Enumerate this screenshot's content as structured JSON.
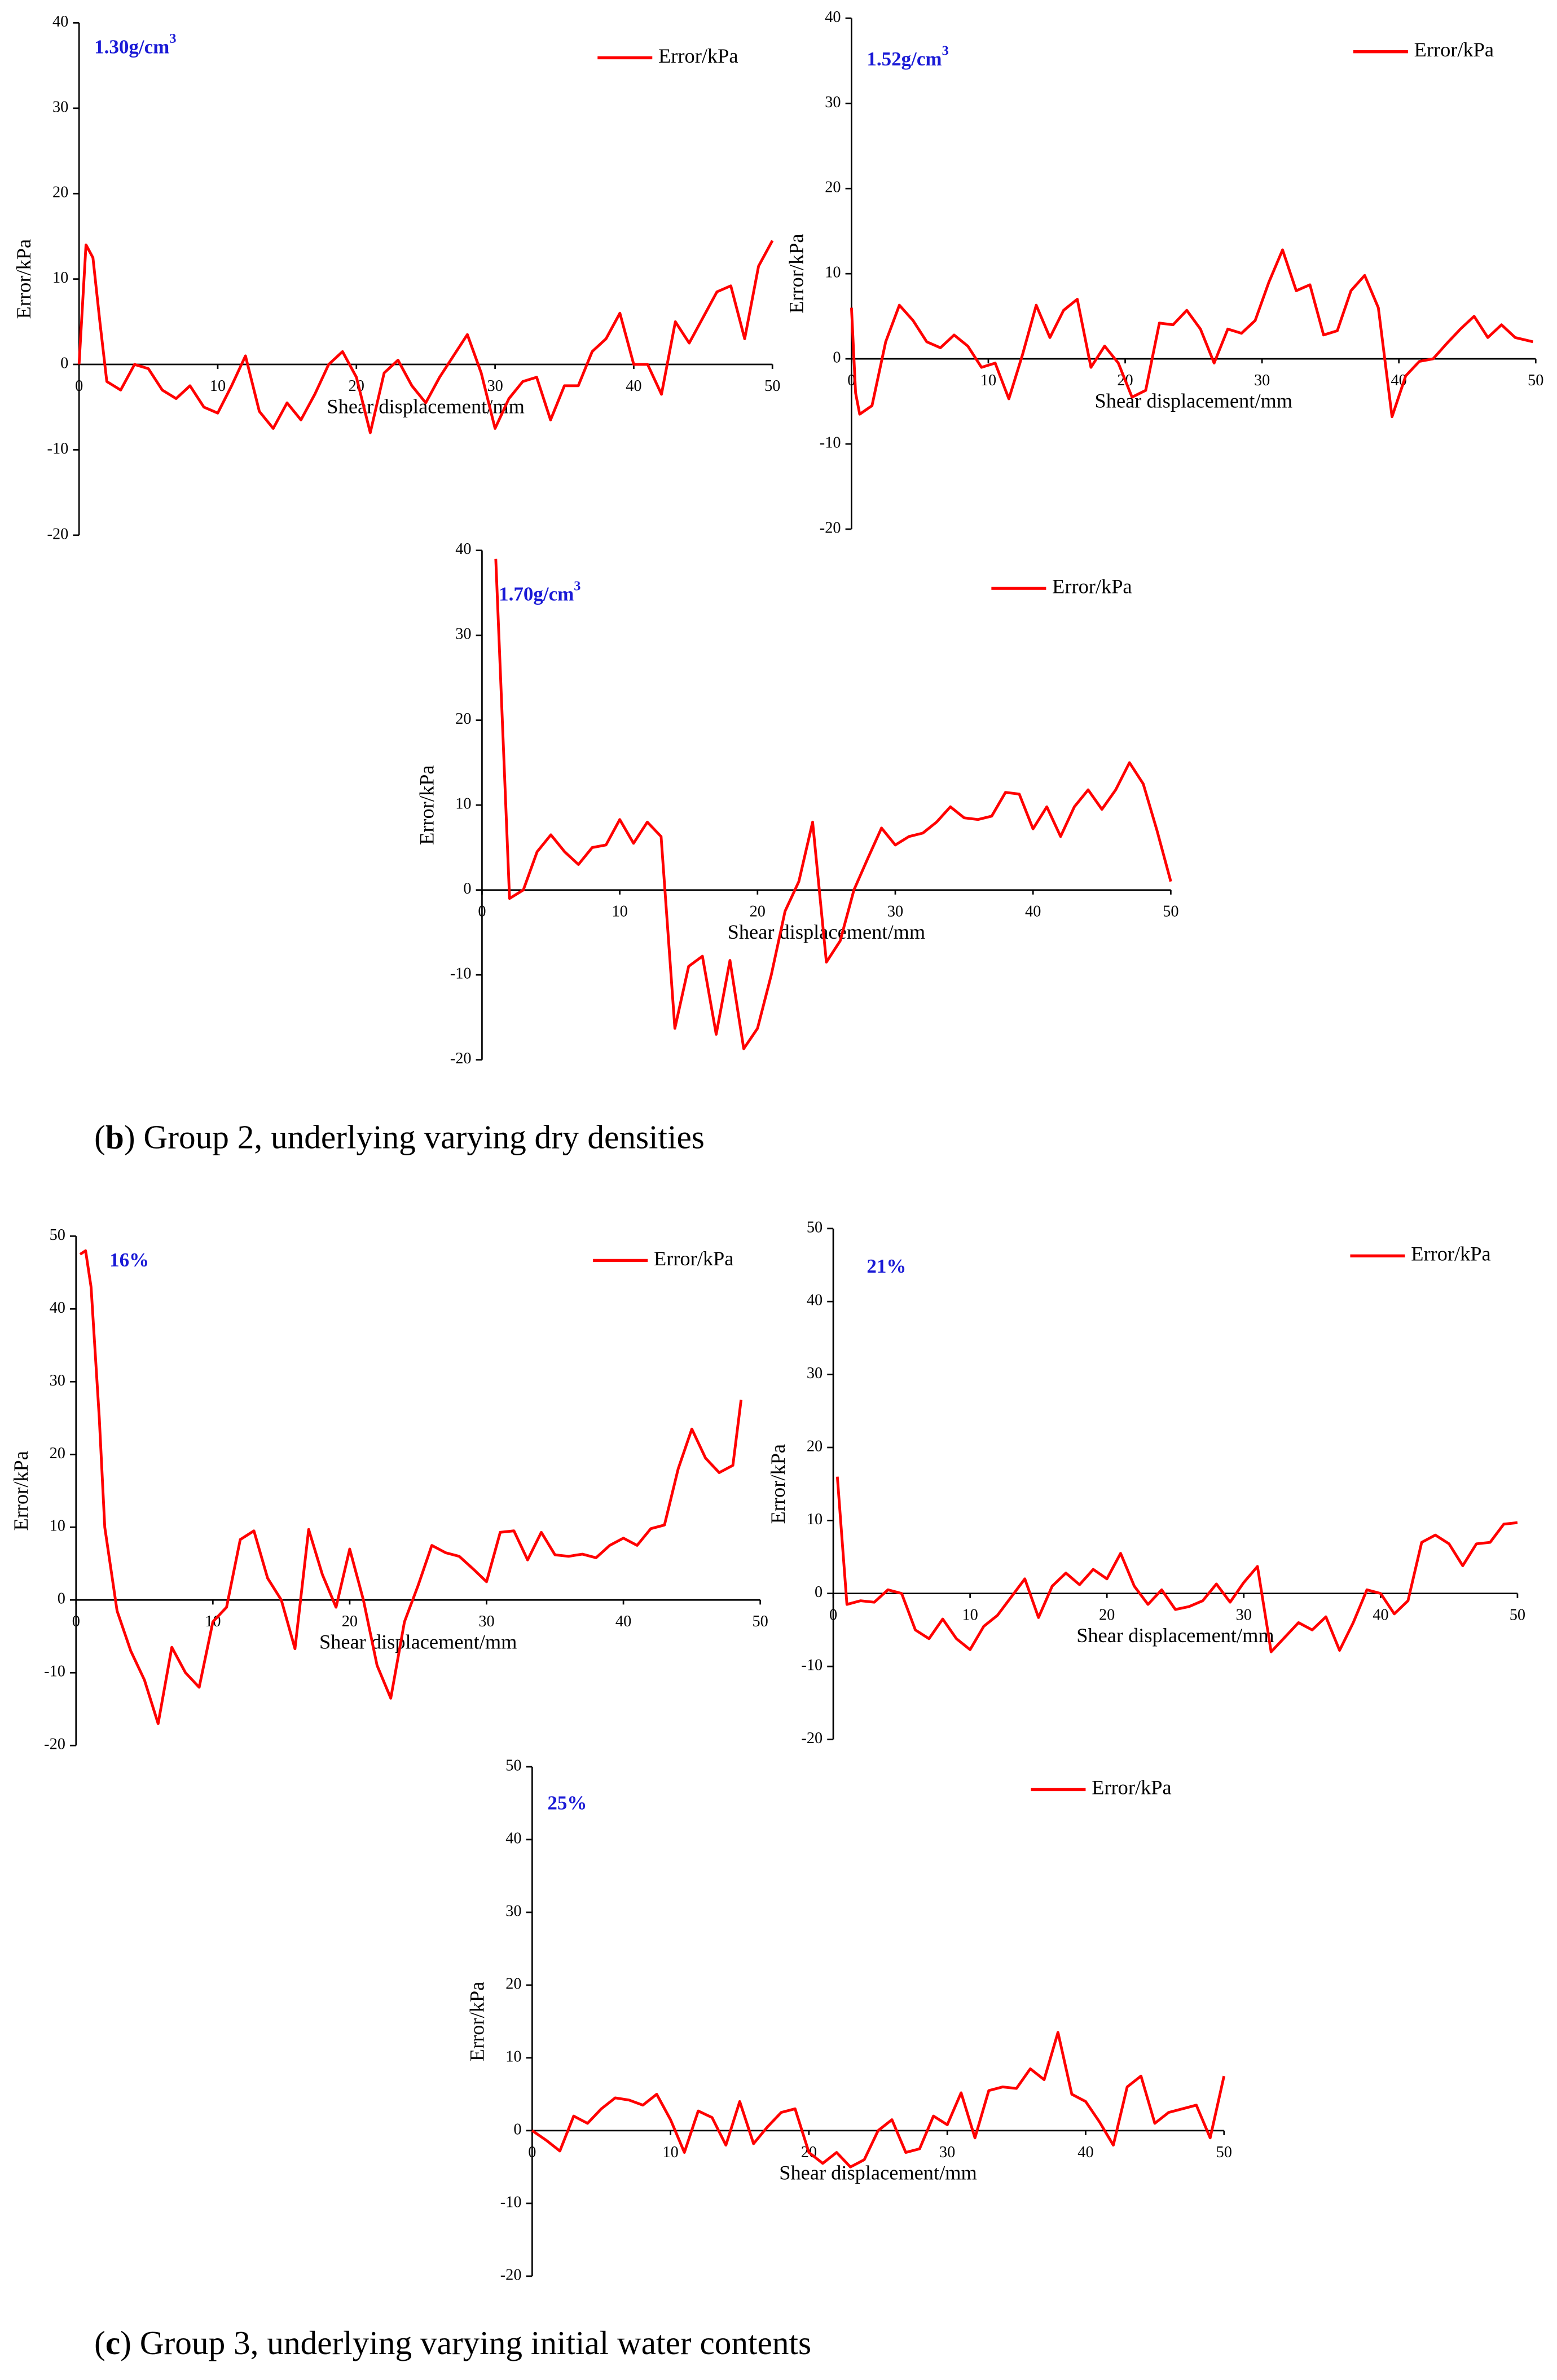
{
  "captions": [
    [
      "(",
      "b",
      ") Group 2, underlying varying dry densities"
    ],
    [
      "(",
      "c",
      ") Group 3, underlying varying initial water contents"
    ]
  ],
  "chart_data": [
    {
      "type": "line",
      "annotation": "1.30g/cm",
      "annotation_sup": "3",
      "xlabel": "Shear displacement/mm",
      "ylabel": "Error/kPa",
      "xlim": [
        0,
        50
      ],
      "ylim": [
        -20,
        40
      ],
      "xticks": [
        0,
        10,
        20,
        30,
        40,
        50
      ],
      "yticks": [
        -20,
        -10,
        0,
        10,
        20,
        30,
        40
      ],
      "x": [
        0,
        0.5,
        1,
        1.5,
        2,
        3,
        4,
        5,
        6,
        7,
        8,
        9,
        10,
        11,
        12,
        13,
        14,
        15,
        16,
        17,
        18,
        19,
        20,
        21,
        22,
        23,
        24,
        25,
        26,
        27,
        28,
        29,
        30,
        31,
        32,
        33,
        34,
        35,
        36,
        37,
        38,
        39,
        40,
        41,
        42,
        43,
        44,
        45,
        46,
        47,
        48,
        49,
        50
      ],
      "series": [
        {
          "name": "Error/kPa",
          "color": "#ff0000",
          "values": [
            0,
            14,
            12.5,
            5,
            -2,
            -3,
            0,
            -0.5,
            -3,
            -4,
            -2.5,
            -5,
            -5.7,
            -2.5,
            1,
            -5.5,
            -7.5,
            -4.5,
            -6.5,
            -3.5,
            0,
            1.5,
            -1.5,
            -8,
            -1,
            0.5,
            -2.5,
            -4.5,
            -1.5,
            1,
            3.5,
            -1,
            -7.5,
            -4,
            -2,
            -1.5,
            -6.5,
            -2.5,
            -2.5,
            1.5,
            3,
            6,
            0,
            0,
            -3.5,
            5,
            2.5,
            5.5,
            8.5,
            9.2,
            3,
            11.5,
            14.5
          ]
        }
      ]
    },
    {
      "type": "line",
      "annotation": "1.52g/cm",
      "annotation_sup": "3",
      "xlabel": "Shear displacement/mm",
      "ylabel": "Error/kPa",
      "xlim": [
        0,
        50
      ],
      "ylim": [
        -20,
        40
      ],
      "xticks": [
        0,
        10,
        20,
        30,
        40,
        50
      ],
      "yticks": [
        -20,
        -10,
        0,
        10,
        20,
        30,
        40
      ],
      "x": [
        0,
        0.3,
        0.6,
        1.5,
        2.5,
        3.5,
        4.5,
        5.5,
        6.5,
        7.5,
        8.5,
        9.5,
        10.5,
        11.5,
        12.5,
        13.5,
        14.5,
        15.5,
        16.5,
        17.5,
        18.5,
        19.5,
        20.5,
        21.5,
        22.5,
        23.5,
        24.5,
        25.5,
        26.5,
        27.5,
        28.5,
        29.5,
        30.5,
        31.5,
        32.5,
        33.5,
        34.5,
        35.5,
        36.5,
        37.5,
        38.5,
        39.5,
        40.5,
        41.5,
        42.5,
        43.5,
        44.5,
        45.5,
        46.5,
        47.5,
        48.5,
        49.8
      ],
      "series": [
        {
          "name": "Error/kPa",
          "color": "#ff0000",
          "values": [
            6,
            -4,
            -6.5,
            -5.5,
            2,
            6.3,
            4.5,
            2,
            1.3,
            2.8,
            1.5,
            -1,
            -0.5,
            -4.7,
            0.5,
            6.3,
            2.5,
            5.7,
            7,
            -1,
            1.5,
            -0.5,
            -4.5,
            -3.7,
            4.2,
            4,
            5.7,
            3.5,
            -0.5,
            3.5,
            3,
            4.5,
            9,
            12.8,
            8,
            8.7,
            2.8,
            3.3,
            8,
            9.8,
            6,
            -6.8,
            -2,
            -0.3,
            0,
            1.8,
            3.5,
            5,
            2.5,
            4,
            2.5,
            2
          ]
        }
      ]
    },
    {
      "type": "line",
      "annotation": "1.70g/cm",
      "annotation_sup": "3",
      "xlabel": "Shear displacement/mm",
      "ylabel": "Error/kPa",
      "xlim": [
        0,
        50
      ],
      "ylim": [
        -20,
        40
      ],
      "xticks": [
        0,
        10,
        20,
        30,
        40,
        50
      ],
      "yticks": [
        -20,
        -10,
        0,
        10,
        20,
        30,
        40
      ],
      "x": [
        1,
        2,
        3,
        4,
        5,
        6,
        7,
        8,
        9,
        10,
        11,
        12,
        13,
        14,
        15,
        16,
        17,
        18,
        19,
        20,
        21,
        22,
        23,
        24,
        25,
        26,
        27,
        28,
        29,
        30,
        31,
        32,
        33,
        34,
        35,
        36,
        37,
        38,
        39,
        40,
        41,
        42,
        43,
        44,
        45,
        46,
        47,
        48,
        49,
        50
      ],
      "series": [
        {
          "name": "Error/kPa",
          "color": "#ff0000",
          "values": [
            39,
            -1,
            0,
            4.5,
            6.5,
            4.5,
            3,
            5,
            5.3,
            8.3,
            5.5,
            8,
            6.3,
            -16.3,
            -9,
            -7.8,
            -17,
            -8.3,
            -18.7,
            -16.3,
            -10,
            -2.5,
            1,
            8,
            -8.5,
            -6,
            0,
            3.7,
            7.3,
            5.3,
            6.3,
            6.7,
            8,
            9.8,
            8.5,
            8.3,
            8.7,
            11.5,
            11.3,
            7.2,
            9.8,
            6.3,
            9.8,
            11.8,
            9.5,
            11.8,
            15,
            12.5,
            7,
            1
          ]
        }
      ]
    },
    {
      "type": "line",
      "annotation": "16%",
      "xlabel": "Shear displacement/mm",
      "ylabel": "Error/kPa",
      "xlim": [
        0,
        50
      ],
      "ylim": [
        -20,
        50
      ],
      "xticks": [
        0,
        10,
        20,
        30,
        40,
        50
      ],
      "yticks": [
        -20,
        -10,
        0,
        10,
        20,
        30,
        40,
        50
      ],
      "x": [
        0.3,
        0.7,
        1.1,
        1.7,
        2.1,
        3,
        4,
        5,
        6,
        7,
        8,
        9,
        10,
        11,
        12,
        13,
        14,
        15,
        16,
        17,
        18,
        19,
        20,
        21,
        22,
        23,
        24,
        25,
        26,
        27,
        28,
        29,
        30,
        31,
        32,
        33,
        34,
        35,
        36,
        37,
        38,
        39,
        40,
        41,
        42,
        43,
        44,
        45,
        46,
        47,
        48,
        48.6
      ],
      "series": [
        {
          "name": "Error/kPa",
          "color": "#ff0000",
          "values": [
            47.5,
            48,
            43,
            25,
            10,
            -1.5,
            -7,
            -11,
            -17,
            -6.5,
            -10,
            -12,
            -3,
            -1,
            8.3,
            9.5,
            3,
            0,
            -6.7,
            9.7,
            3.5,
            -1,
            7,
            0,
            -9,
            -13.5,
            -3,
            2,
            7.5,
            6.5,
            6,
            4.3,
            2.5,
            9.3,
            9.5,
            5.5,
            9.3,
            6.2,
            6,
            6.3,
            5.8,
            7.5,
            8.5,
            7.5,
            9.8,
            10.3,
            18,
            23.5,
            19.5,
            17.5,
            18.5,
            27.5
          ]
        }
      ]
    },
    {
      "type": "line",
      "annotation": "21%",
      "xlabel": "Shear displacement/mm",
      "ylabel": "Error/kPa",
      "xlim": [
        0,
        50
      ],
      "ylim": [
        -20,
        50
      ],
      "xticks": [
        0,
        10,
        20,
        30,
        40,
        50
      ],
      "yticks": [
        -20,
        -10,
        0,
        10,
        20,
        30,
        40,
        50
      ],
      "x": [
        0.3,
        1,
        2,
        3,
        4,
        5,
        6,
        7,
        8,
        9,
        10,
        11,
        12,
        13,
        14,
        15,
        16,
        17,
        18,
        19,
        20,
        21,
        22,
        23,
        24,
        25,
        26,
        27,
        28,
        29,
        30,
        31,
        32,
        33,
        34,
        35,
        36,
        37,
        38,
        39,
        40,
        41,
        42,
        43,
        44,
        45,
        46,
        47,
        48,
        49,
        50
      ],
      "series": [
        {
          "name": "Error/kPa",
          "color": "#ff0000",
          "values": [
            16,
            -1.5,
            -1,
            -1.2,
            0.5,
            0,
            -5,
            -6.2,
            -3.5,
            -6.2,
            -7.7,
            -4.5,
            -3,
            -0.5,
            2,
            -3.3,
            1,
            2.8,
            1.2,
            3.3,
            2,
            5.5,
            1,
            -1.5,
            0.5,
            -2.2,
            -1.8,
            -1,
            1.3,
            -1.2,
            1.5,
            3.7,
            -8,
            -6,
            -4,
            -5,
            -3.2,
            -7.8,
            -4,
            0.5,
            0,
            -2.8,
            -1,
            7,
            8,
            6.8,
            3.8,
            6.8,
            7,
            9.5,
            9.7
          ]
        }
      ]
    },
    {
      "type": "line",
      "annotation": "25%",
      "xlabel": "Shear displacement/mm",
      "ylabel": "Error/kPa",
      "xlim": [
        0,
        50
      ],
      "ylim": [
        -20,
        50
      ],
      "xticks": [
        0,
        10,
        20,
        30,
        40,
        50
      ],
      "yticks": [
        -20,
        -10,
        0,
        10,
        20,
        30,
        40,
        50
      ],
      "x": [
        0,
        1,
        2,
        3,
        4,
        5,
        6,
        7,
        8,
        9,
        10,
        11,
        12,
        13,
        14,
        15,
        16,
        17,
        18,
        19,
        20,
        21,
        22,
        23,
        24,
        25,
        26,
        27,
        28,
        29,
        30,
        31,
        32,
        33,
        34,
        35,
        36,
        37,
        38,
        39,
        40,
        41,
        42,
        43,
        44,
        45,
        46,
        47,
        48,
        49,
        50
      ],
      "series": [
        {
          "name": "Error/kPa",
          "color": "#ff0000",
          "values": [
            0,
            -1.3,
            -2.8,
            2,
            1,
            3,
            4.5,
            4.2,
            3.5,
            5,
            1.5,
            -3,
            2.7,
            1.8,
            -2,
            4,
            -1.8,
            0.5,
            2.5,
            3,
            -3,
            -4.5,
            -3,
            -5,
            -4,
            0,
            1.5,
            -3,
            -2.5,
            2,
            0.8,
            5.2,
            -1,
            5.5,
            6,
            5.8,
            8.5,
            7,
            13.5,
            5,
            4,
            1.2,
            -2,
            6,
            7.5,
            1,
            2.5,
            3,
            3.5,
            -1,
            7.5
          ]
        }
      ]
    }
  ]
}
